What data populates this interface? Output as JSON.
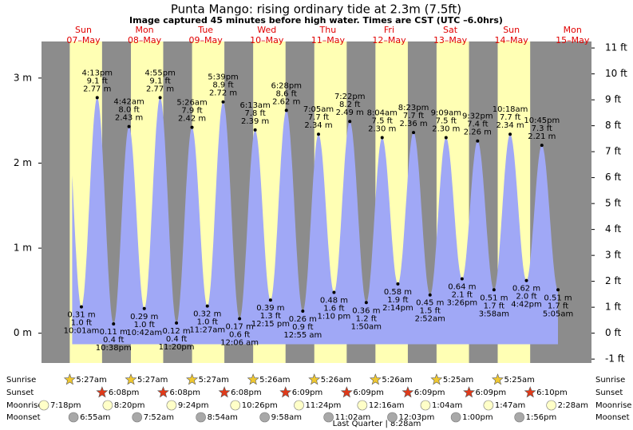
{
  "chart_data": {
    "type": "tide",
    "title": "Punta Mango: rising  ordinary tide at 2.3m (7.5ft)",
    "subtitle": "Image captured 45 minutes before high water. Times are CST (UTC –6.0hrs)",
    "ylim": [
      -0.35,
      3.43
    ],
    "yticks": [
      {
        "value": 0,
        "label": "0 m"
      },
      {
        "value": 1,
        "label": "1 m"
      },
      {
        "value": 2,
        "label": "2 m"
      },
      {
        "value": 3,
        "label": "3 m"
      }
    ],
    "y2lim": [
      -1.15,
      11.25
    ],
    "y2ticks": [
      {
        "value": -1,
        "label": "-1 ft"
      },
      {
        "value": 0,
        "label": "0 ft"
      },
      {
        "value": 1,
        "label": "1 ft"
      },
      {
        "value": 2,
        "label": "2 ft"
      },
      {
        "value": 3,
        "label": "3 ft"
      },
      {
        "value": 4,
        "label": "4 ft"
      },
      {
        "value": 5,
        "label": "5 ft"
      },
      {
        "value": 6,
        "label": "6 ft"
      },
      {
        "value": 7,
        "label": "7 ft"
      },
      {
        "value": 8,
        "label": "8 ft"
      },
      {
        "value": 9,
        "label": "9 ft"
      },
      {
        "value": 10,
        "label": "10 ft"
      },
      {
        "value": 11,
        "label": "11 ft"
      }
    ],
    "colors": {
      "tide": "#a0a8f6",
      "day": "#ffffb4",
      "night": "#8c8c8c"
    },
    "row_labels": {
      "sunrise": "Sunrise",
      "sunset": "Sunset",
      "moonrise": "Moonrise",
      "moonset": "Moonset"
    },
    "moonrise_prior": "7:18pm",
    "moon_phase": "Last Quarter | 8:28am",
    "days": [
      {
        "weekday": "Sun",
        "date": "07–May",
        "sunrise": "5:27am",
        "sunset": "6:08pm",
        "moonrise": "8:20pm",
        "moonset": "6:55am",
        "tides": [
          {
            "time": "10:01am",
            "value": 0.31,
            "value_label": "0.31 m",
            "feet": "1.0 ft"
          },
          {
            "time": "4:13pm",
            "value": 2.77,
            "value_label": "2.77 m",
            "feet": "9.1 ft"
          },
          {
            "time": "10:38pm",
            "value": 0.11,
            "value_label": "0.11 m",
            "feet": "0.4 ft"
          }
        ]
      },
      {
        "weekday": "Mon",
        "date": "08–May",
        "sunrise": "5:27am",
        "sunset": "6:08pm",
        "moonrise": "9:24pm",
        "moonset": "7:52am",
        "tides": [
          {
            "time": "4:42am",
            "value": 2.43,
            "value_label": "2.43 m",
            "feet": "8.0 ft"
          },
          {
            "time": "10:42am",
            "value": 0.29,
            "value_label": "0.29 m",
            "feet": "1.0 ft"
          },
          {
            "time": "4:55pm",
            "value": 2.77,
            "value_label": "2.77 m",
            "feet": "9.1 ft"
          },
          {
            "time": "11:20pm",
            "value": 0.12,
            "value_label": "0.12 m",
            "feet": "0.4 ft"
          }
        ]
      },
      {
        "weekday": "Tue",
        "date": "09–May",
        "sunrise": "5:27am",
        "sunset": "6:08pm",
        "moonrise": "10:26pm",
        "moonset": "8:54am",
        "tides": [
          {
            "time": "5:26am",
            "value": 2.42,
            "value_label": "2.42 m",
            "feet": "7.9 ft"
          },
          {
            "time": "11:27am",
            "value": 0.32,
            "value_label": "0.32 m",
            "feet": "1.0 ft"
          },
          {
            "time": "5:39pm",
            "value": 2.72,
            "value_label": "2.72 m",
            "feet": "8.9 ft"
          }
        ]
      },
      {
        "weekday": "Wed",
        "date": "10–May",
        "sunrise": "5:26am",
        "sunset": "6:09pm",
        "moonrise": "11:24pm",
        "moonset": "9:58am",
        "tides": [
          {
            "time": "12:06 am",
            "value": 0.17,
            "value_label": "0.17 m",
            "feet": "0.6 ft"
          },
          {
            "time": "6:13am",
            "value": 2.39,
            "value_label": "2.39 m",
            "feet": "7.8 ft"
          },
          {
            "time": "12:15 pm",
            "value": 0.39,
            "value_label": "0.39 m",
            "feet": "1.3 ft"
          },
          {
            "time": "6:28pm",
            "value": 2.62,
            "value_label": "2.62 m",
            "feet": "8.6 ft"
          }
        ]
      },
      {
        "weekday": "Thu",
        "date": "11–May",
        "sunrise": "5:26am",
        "sunset": "6:09pm",
        "moonrise": null,
        "moonset": "11:02am",
        "tides": [
          {
            "time": "12:55 am",
            "value": 0.26,
            "value_label": "0.26 m",
            "feet": "0.9 ft"
          },
          {
            "time": "7:05am",
            "value": 2.34,
            "value_label": "2.34 m",
            "feet": "7.7 ft"
          },
          {
            "time": "1:10 pm",
            "value": 0.48,
            "value_label": "0.48 m",
            "feet": "1.6 ft"
          },
          {
            "time": "7:22pm",
            "value": 2.49,
            "value_label": "2.49 m",
            "feet": "8.2 ft"
          }
        ]
      },
      {
        "weekday": "Fri",
        "date": "12–May",
        "sunrise": "5:26am",
        "sunset": "6:09pm",
        "moonrise": "12:16am",
        "moonset": "12:03pm",
        "tides": [
          {
            "time": "1:50am",
            "value": 0.36,
            "value_label": "0.36 m",
            "feet": "1.2 ft"
          },
          {
            "time": "8:04am",
            "value": 2.3,
            "value_label": "2.30 m",
            "feet": "7.5 ft"
          },
          {
            "time": "2:14pm",
            "value": 0.58,
            "value_label": "0.58 m",
            "feet": "1.9 ft"
          },
          {
            "time": "8:23pm",
            "value": 2.36,
            "value_label": "2.36 m",
            "feet": "7.7 ft"
          }
        ]
      },
      {
        "weekday": "Sat",
        "date": "13–May",
        "sunrise": "5:25am",
        "sunset": "6:09pm",
        "moonrise": "1:04am",
        "moonset": "1:00pm",
        "tides": [
          {
            "time": "2:52am",
            "value": 0.45,
            "value_label": "0.45 m",
            "feet": "1.5 ft"
          },
          {
            "time": "9:09am",
            "value": 2.3,
            "value_label": "2.30 m",
            "feet": "7.5 ft"
          },
          {
            "time": "3:26pm",
            "value": 0.64,
            "value_label": "0.64 m",
            "feet": "2.1 ft"
          },
          {
            "time": "9:32pm",
            "value": 2.26,
            "value_label": "2.26 m",
            "feet": "7.4 ft"
          }
        ]
      },
      {
        "weekday": "Sun",
        "date": "14–May",
        "sunrise": "5:25am",
        "sunset": "6:10pm",
        "moonrise": "1:47am",
        "moonset": "1:56pm",
        "tides": [
          {
            "time": "3:58am",
            "value": 0.51,
            "value_label": "0.51 m",
            "feet": "1.7 ft"
          },
          {
            "time": "10:18am",
            "value": 2.34,
            "value_label": "2.34 m",
            "feet": "7.7 ft"
          },
          {
            "time": "4:42pm",
            "value": 0.62,
            "value_label": "0.62 m",
            "feet": "2.0 ft"
          },
          {
            "time": "10:45pm",
            "value": 2.21,
            "value_label": "2.21 m",
            "feet": "7.3 ft"
          }
        ]
      },
      {
        "weekday": "Mon",
        "date": "15–May",
        "sunrise": null,
        "sunset": null,
        "moonrise": "2:28am",
        "moonset": null,
        "tides": [
          {
            "time": "5:05am",
            "value": 0.51,
            "value_label": "0.51 m",
            "feet": "1.7 ft"
          }
        ]
      }
    ]
  }
}
